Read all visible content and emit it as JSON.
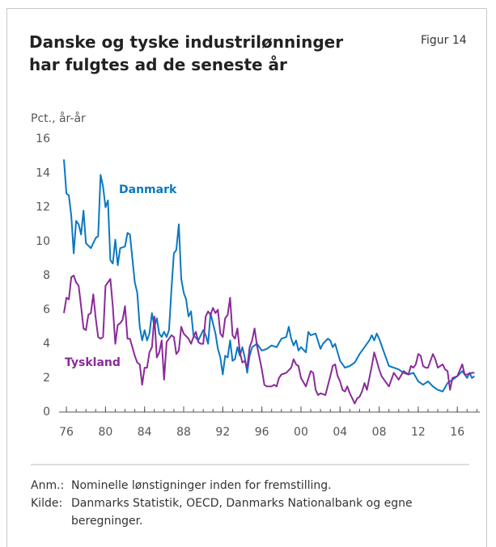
{
  "chart_data": {
    "type": "line",
    "title": "Danske og tyske industrilønninger\nhar fulgtes ad de seneste år",
    "figure_label": "Figur 14",
    "ylabel": "Pct., år-år",
    "xlim": [
      1975.25,
      2018.3
    ],
    "xticks": [
      {
        "value": 1976,
        "label": "76"
      },
      {
        "value": 1980,
        "label": "80"
      },
      {
        "value": 1984,
        "label": "84"
      },
      {
        "value": 1988,
        "label": "88"
      },
      {
        "value": 1992,
        "label": "92"
      },
      {
        "value": 1996,
        "label": "96"
      },
      {
        "value": 2000,
        "label": "00"
      },
      {
        "value": 2004,
        "label": "04"
      },
      {
        "value": 2008,
        "label": "08"
      },
      {
        "value": 2012,
        "label": "12"
      },
      {
        "value": 2016,
        "label": "16"
      }
    ],
    "xminorticks": [
      1976,
      1977,
      1978,
      1979,
      1980,
      1981,
      1982,
      1983,
      1984,
      1985,
      1986,
      1987,
      1988,
      1989,
      1990,
      1991,
      1992,
      1993,
      1994,
      1995,
      1996,
      1997,
      1998,
      1999,
      2000,
      2001,
      2002,
      2003,
      2004,
      2005,
      2006,
      2007,
      2008,
      2009,
      2010,
      2011,
      2012,
      2013,
      2014,
      2015,
      2016,
      2017,
      2018
    ],
    "ylim": [
      0,
      16
    ],
    "yticks": [
      0,
      2,
      4,
      6,
      8,
      10,
      12,
      14,
      16
    ],
    "series": [
      {
        "name": "Danmark",
        "color": "#0b78c2",
        "x": [
          1975.75,
          1976,
          1976.25,
          1976.5,
          1976.75,
          1977,
          1977.25,
          1977.5,
          1977.75,
          1978,
          1978.5,
          1979,
          1979.25,
          1979.5,
          1979.75,
          1980,
          1980.25,
          1980.5,
          1980.75,
          1981,
          1981.25,
          1981.5,
          1982,
          1982.25,
          1982.5,
          1983,
          1983.25,
          1983.5,
          1983.75,
          1984,
          1984.25,
          1984.5,
          1984.75,
          1985,
          1985.25,
          1985.5,
          1985.75,
          1986,
          1986.25,
          1986.5,
          1986.75,
          1987,
          1987.25,
          1987.5,
          1987.75,
          1988,
          1988.25,
          1988.5,
          1988.75,
          1989,
          1989.5,
          1990,
          1990.25,
          1990.5,
          1990.75,
          1991,
          1991.25,
          1991.5,
          1991.75,
          1992,
          1992.25,
          1992.5,
          1992.75,
          1993,
          1993.25,
          1993.5,
          1993.75,
          1994,
          1994.25,
          1994.5,
          1994.75,
          1995,
          1995.5,
          1996,
          1996.5,
          1997,
          1997.5,
          1998,
          1998.5,
          1998.75,
          1999,
          1999.25,
          1999.5,
          1999.75,
          2000,
          2000.5,
          2000.75,
          2001,
          2001.5,
          2002,
          2002.25,
          2002.75,
          2003,
          2003.25,
          2003.5,
          2004,
          2004.5,
          2005,
          2005.5,
          2006,
          2006.5,
          2007,
          2007.25,
          2007.5,
          2007.75,
          2008,
          2008.5,
          2009,
          2009.5,
          2010,
          2010.5,
          2011,
          2011.5,
          2012,
          2012.5,
          2013,
          2013.5,
          2014,
          2014.5,
          2015,
          2015.5,
          2016,
          2016.5,
          2017,
          2017.25,
          2017.5,
          2017.75
        ],
        "values": [
          14.8,
          12.8,
          12.7,
          11.5,
          9.3,
          11.2,
          11.0,
          10.4,
          11.8,
          9.9,
          9.6,
          10.2,
          10.3,
          13.9,
          13.2,
          12.0,
          12.4,
          8.9,
          8.7,
          10.1,
          8.6,
          9.6,
          9.7,
          10.5,
          10.4,
          7.6,
          7.0,
          5.0,
          4.2,
          4.8,
          4.2,
          4.6,
          5.8,
          5.0,
          5.5,
          4.6,
          4.4,
          4.7,
          4.4,
          4.8,
          7.2,
          9.3,
          9.5,
          11.0,
          7.8,
          7.0,
          6.6,
          5.6,
          5.9,
          4.5,
          4.2,
          4.8,
          4.5,
          4.0,
          5.8,
          5.2,
          4.6,
          3.7,
          3.2,
          2.2,
          3.3,
          3.2,
          4.2,
          3.0,
          3.1,
          3.8,
          3.3,
          3.8,
          3.2,
          2.3,
          3.3,
          3.8,
          4.0,
          3.6,
          3.7,
          3.9,
          3.8,
          4.3,
          4.4,
          5.0,
          4.3,
          3.9,
          4.2,
          3.6,
          3.8,
          3.5,
          4.7,
          4.5,
          4.6,
          3.7,
          4.0,
          4.3,
          4.2,
          3.8,
          4.0,
          3.0,
          2.6,
          2.7,
          2.9,
          3.4,
          3.8,
          4.2,
          4.5,
          4.2,
          4.6,
          4.3,
          3.5,
          2.7,
          2.6,
          2.5,
          2.3,
          2.2,
          2.3,
          1.8,
          1.6,
          1.8,
          1.5,
          1.3,
          1.2,
          1.7,
          1.9,
          2.1,
          2.4,
          2.0,
          2.3,
          2.0,
          2.1
        ]
      },
      {
        "name": "Tyskland",
        "color": "#8a2a9a",
        "x": [
          1975.75,
          1976,
          1976.25,
          1976.5,
          1976.75,
          1977,
          1977.25,
          1977.5,
          1977.75,
          1978,
          1978.25,
          1978.5,
          1978.75,
          1979,
          1979.25,
          1979.5,
          1979.75,
          1980,
          1980.25,
          1980.5,
          1980.75,
          1981,
          1981.25,
          1981.5,
          1981.75,
          1982,
          1982.25,
          1982.5,
          1983,
          1983.25,
          1983.5,
          1983.75,
          1984,
          1984.25,
          1984.5,
          1984.75,
          1985,
          1985.25,
          1985.5,
          1985.75,
          1986,
          1986.25,
          1986.5,
          1986.75,
          1987,
          1987.25,
          1987.5,
          1987.75,
          1988,
          1988.5,
          1988.75,
          1989,
          1989.25,
          1989.5,
          1989.75,
          1990,
          1990.25,
          1990.5,
          1990.75,
          1991,
          1991.25,
          1991.5,
          1991.75,
          1992,
          1992.25,
          1992.5,
          1992.75,
          1993,
          1993.25,
          1993.5,
          1993.75,
          1994,
          1994.25,
          1994.5,
          1994.75,
          1995,
          1995.25,
          1995.5,
          1995.75,
          1996,
          1996.25,
          1996.5,
          1997,
          1997.25,
          1997.5,
          1997.75,
          1998,
          1998.5,
          1999,
          1999.25,
          1999.5,
          1999.75,
          2000,
          2000.5,
          2001,
          2001.25,
          2001.5,
          2001.75,
          2002,
          2002.5,
          2003,
          2003.25,
          2003.5,
          2003.75,
          2004,
          2004.25,
          2004.5,
          2004.75,
          2005,
          2005.25,
          2005.5,
          2005.75,
          2006,
          2006.25,
          2006.5,
          2006.75,
          2007,
          2007.25,
          2007.5,
          2007.75,
          2008,
          2008.25,
          2008.75,
          2009,
          2009.5,
          2010,
          2010.5,
          2011,
          2011.25,
          2011.5,
          2011.75,
          2012,
          2012.25,
          2012.5,
          2012.75,
          2013,
          2013.5,
          2013.75,
          2014,
          2014.5,
          2014.75,
          2015,
          2015.25,
          2015.5,
          2016,
          2016.5,
          2016.75,
          2017,
          2017.5,
          2017.75
        ],
        "values": [
          5.8,
          6.7,
          6.6,
          7.9,
          8.0,
          7.6,
          7.4,
          6.2,
          4.9,
          4.8,
          5.7,
          5.8,
          6.9,
          5.5,
          4.4,
          4.3,
          4.4,
          7.4,
          7.6,
          7.8,
          6.2,
          4.0,
          5.1,
          5.2,
          5.4,
          6.2,
          4.3,
          4.3,
          3.3,
          2.9,
          2.8,
          1.6,
          2.6,
          2.6,
          3.5,
          3.8,
          5.6,
          3.2,
          3.5,
          4.2,
          1.9,
          4.1,
          4.3,
          4.5,
          4.4,
          3.4,
          3.6,
          5.0,
          4.6,
          4.3,
          4.0,
          4.4,
          4.7,
          4.1,
          4.0,
          4.0,
          5.6,
          5.9,
          5.7,
          6.1,
          5.8,
          6.0,
          4.6,
          4.4,
          5.5,
          5.7,
          6.7,
          4.5,
          4.3,
          4.9,
          3.5,
          2.9,
          3.0,
          2.6,
          3.8,
          4.2,
          4.9,
          3.9,
          3.2,
          2.5,
          1.6,
          1.5,
          1.5,
          1.6,
          1.5,
          2.0,
          2.2,
          2.3,
          2.6,
          3.1,
          2.8,
          2.7,
          2.0,
          1.5,
          2.4,
          2.3,
          1.3,
          1.0,
          1.1,
          1.0,
          2.1,
          2.7,
          2.8,
          2.1,
          1.8,
          1.3,
          1.2,
          1.5,
          1.1,
          0.8,
          0.5,
          0.8,
          0.9,
          1.2,
          1.7,
          1.3,
          2.0,
          2.7,
          3.5,
          3.0,
          2.5,
          2.1,
          1.7,
          1.5,
          2.3,
          1.9,
          2.4,
          2.2,
          2.7,
          2.6,
          2.8,
          3.4,
          3.3,
          2.7,
          2.6,
          2.6,
          3.4,
          3.1,
          2.6,
          2.8,
          2.5,
          2.4,
          1.3,
          2.0,
          2.1,
          2.8,
          2.2,
          2.2,
          2.3,
          2.3
        ]
      }
    ]
  },
  "notes": [
    {
      "label": "Anm.:",
      "text": "Nominelle lønstigninger inden for fremstilling."
    },
    {
      "label": "Kilde:",
      "text": "Danmarks Statistik, OECD, Danmarks Nationalbank og egne beregninger."
    }
  ]
}
